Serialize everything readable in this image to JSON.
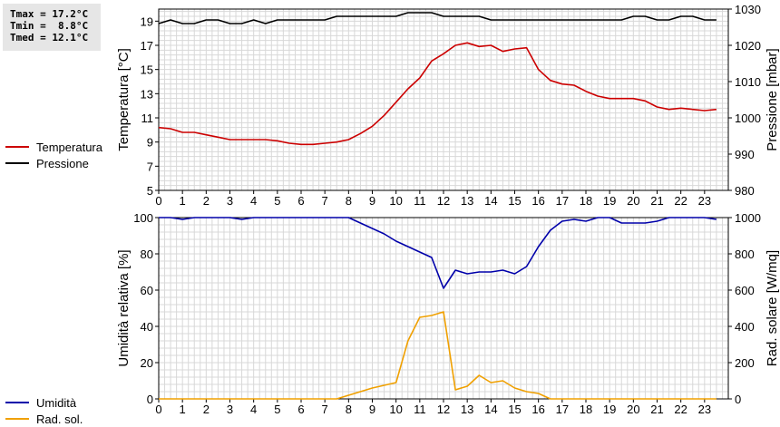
{
  "stats": {
    "tmax": "Tmax = 17.2°C",
    "tmin": "Tmin =  8.8°C",
    "tmed": "Tmed = 12.1°C"
  },
  "legend_top": [
    {
      "label": "Temperatura",
      "color": "#cc0000"
    },
    {
      "label": "Pressione",
      "color": "#000000"
    }
  ],
  "legend_bottom": [
    {
      "label": "Umidità",
      "color": "#0000aa"
    },
    {
      "label": "Rad. sol.",
      "color": "#f0a000"
    }
  ],
  "chart_data": [
    {
      "type": "line",
      "xlabel": "",
      "ylabel": "Temperatura [°C]",
      "y2label": "Pressione [mbar]",
      "xlim": [
        0,
        24
      ],
      "ylim": [
        5,
        20
      ],
      "y2lim": [
        980,
        1030
      ],
      "xticks": [
        "0",
        "1",
        "2",
        "3",
        "4",
        "5",
        "6",
        "7",
        "8",
        "9",
        "10",
        "11",
        "12",
        "13",
        "14",
        "15",
        "16",
        "17",
        "18",
        "19",
        "20",
        "21",
        "22",
        "23"
      ],
      "yticks": [
        "5",
        "7",
        "9",
        "11",
        "13",
        "15",
        "17",
        "19"
      ],
      "y2ticks": [
        "980",
        "990",
        "1000",
        "1010",
        "1020",
        "1030"
      ],
      "grid": true,
      "series": [
        {
          "name": "Temperatura",
          "axis": "left",
          "color": "#cc0000",
          "x": [
            0,
            0.5,
            1,
            1.5,
            2,
            2.5,
            3,
            3.5,
            4,
            4.5,
            5,
            5.5,
            6,
            6.5,
            7,
            7.5,
            8,
            8.5,
            9,
            9.5,
            10,
            10.5,
            11,
            11.5,
            12,
            12.5,
            13,
            13.5,
            14,
            14.5,
            15,
            15.5,
            16,
            16.5,
            17,
            17.5,
            18,
            18.5,
            19,
            19.5,
            20,
            20.5,
            21,
            21.5,
            22,
            22.5,
            23,
            23.5
          ],
          "values": [
            10.2,
            10.1,
            9.8,
            9.8,
            9.6,
            9.4,
            9.2,
            9.2,
            9.2,
            9.2,
            9.1,
            8.9,
            8.8,
            8.8,
            8.9,
            9.0,
            9.2,
            9.7,
            10.3,
            11.2,
            12.3,
            13.4,
            14.3,
            15.7,
            16.3,
            17.0,
            17.2,
            16.9,
            17.0,
            16.5,
            16.7,
            16.8,
            15.0,
            14.1,
            13.8,
            13.7,
            13.2,
            12.8,
            12.6,
            12.6,
            12.6,
            12.4,
            11.9,
            11.7,
            11.8,
            11.7,
            11.6,
            11.7
          ]
        },
        {
          "name": "Pressione",
          "axis": "right",
          "color": "#000000",
          "x": [
            0,
            0.5,
            1,
            1.5,
            2,
            2.5,
            3,
            3.5,
            4,
            4.5,
            5,
            5.5,
            6,
            6.5,
            7,
            7.5,
            8,
            8.5,
            9,
            9.5,
            10,
            10.5,
            11,
            11.5,
            12,
            12.5,
            13,
            13.5,
            14,
            14.5,
            15,
            15.5,
            16,
            16.5,
            17,
            17.5,
            18,
            18.5,
            19,
            19.5,
            20,
            20.5,
            21,
            21.5,
            22,
            22.5,
            23,
            23.5
          ],
          "values": [
            1026,
            1027,
            1026,
            1026,
            1027,
            1027,
            1026,
            1026,
            1027,
            1026,
            1027,
            1027,
            1027,
            1027,
            1027,
            1028,
            1028,
            1028,
            1028,
            1028,
            1028,
            1029,
            1029,
            1029,
            1028,
            1028,
            1028,
            1028,
            1027,
            1027,
            1027,
            1027,
            1027,
            1027,
            1027,
            1027,
            1027,
            1027,
            1027,
            1027,
            1028,
            1028,
            1027,
            1027,
            1028,
            1028,
            1027,
            1027
          ]
        }
      ]
    },
    {
      "type": "line",
      "xlabel": "",
      "ylabel": "Umidità relativa [%]",
      "y2label": "Rad. solare [W/mq]",
      "xlim": [
        0,
        24
      ],
      "ylim": [
        0,
        100
      ],
      "y2lim": [
        0,
        1000
      ],
      "xticks": [
        "0",
        "1",
        "2",
        "3",
        "4",
        "5",
        "6",
        "7",
        "8",
        "9",
        "10",
        "11",
        "12",
        "13",
        "14",
        "15",
        "16",
        "17",
        "18",
        "19",
        "20",
        "21",
        "22",
        "23"
      ],
      "yticks": [
        "0",
        "20",
        "40",
        "60",
        "80",
        "100"
      ],
      "y2ticks": [
        "0",
        "200",
        "400",
        "600",
        "800",
        "1000"
      ],
      "grid": true,
      "series": [
        {
          "name": "Umidità",
          "axis": "left",
          "color": "#0000aa",
          "x": [
            0,
            0.5,
            1,
            1.5,
            2,
            2.5,
            3,
            3.5,
            4,
            4.5,
            5,
            5.5,
            6,
            6.5,
            7,
            7.5,
            8,
            8.5,
            9,
            9.5,
            10,
            10.5,
            11,
            11.5,
            12,
            12.5,
            13,
            13.5,
            14,
            14.5,
            15,
            15.5,
            16,
            16.5,
            17,
            17.5,
            18,
            18.5,
            19,
            19.5,
            20,
            20.5,
            21,
            21.5,
            22,
            22.5,
            23,
            23.5
          ],
          "values": [
            100,
            100,
            99,
            100,
            100,
            100,
            100,
            99,
            100,
            100,
            100,
            100,
            100,
            100,
            100,
            100,
            100,
            97,
            94,
            91,
            87,
            84,
            81,
            78,
            61,
            71,
            69,
            70,
            70,
            71,
            69,
            73,
            84,
            93,
            98,
            99,
            98,
            100,
            100,
            97,
            97,
            97,
            98,
            100,
            100,
            100,
            100,
            99
          ]
        },
        {
          "name": "Rad. sol.",
          "axis": "right",
          "color": "#f0a000",
          "x": [
            0,
            0.5,
            1,
            1.5,
            2,
            2.5,
            3,
            3.5,
            4,
            4.5,
            5,
            5.5,
            6,
            6.5,
            7,
            7.5,
            8,
            8.5,
            9,
            9.5,
            10,
            10.5,
            11,
            11.5,
            12,
            12.5,
            13,
            13.5,
            14,
            14.5,
            15,
            15.5,
            16,
            16.5,
            17,
            17.5,
            18,
            18.5,
            19,
            19.5,
            20,
            20.5,
            21,
            21.5,
            22,
            22.5,
            23,
            23.5
          ],
          "values": [
            0,
            0,
            0,
            0,
            0,
            0,
            0,
            0,
            0,
            0,
            0,
            0,
            0,
            0,
            0,
            0,
            20,
            40,
            60,
            75,
            90,
            320,
            450,
            460,
            480,
            50,
            70,
            130,
            90,
            100,
            60,
            40,
            30,
            0,
            0,
            0,
            0,
            0,
            0,
            0,
            0,
            0,
            0,
            0,
            0,
            0,
            0,
            0
          ]
        }
      ]
    }
  ]
}
